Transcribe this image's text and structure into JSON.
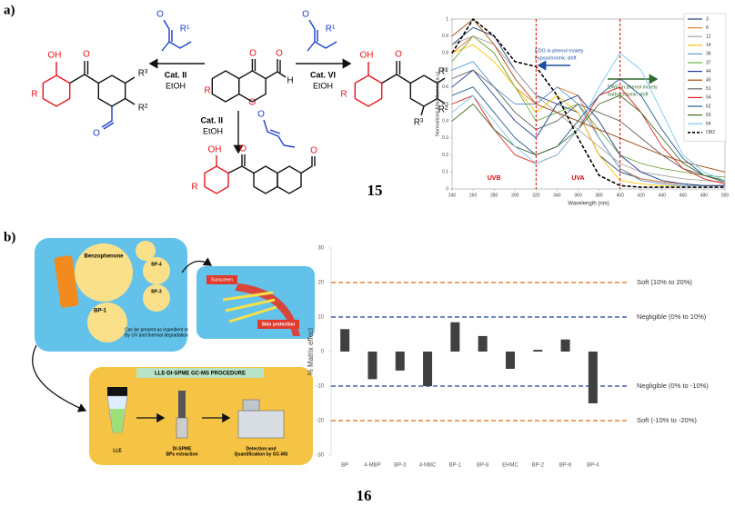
{
  "panel_a": {
    "label": "a)",
    "caption": "15",
    "conditions": [
      {
        "catalyst": "Cat. II",
        "solvent": "EtOH"
      },
      {
        "catalyst": "Cat. VI",
        "solvent": "EtOH"
      },
      {
        "catalyst": "Cat. II",
        "solvent": "EtOH"
      }
    ],
    "left_product": [
      "OH",
      "O",
      "R",
      "R³",
      "R²",
      "O"
    ],
    "left_reagent": [
      "O",
      "R¹"
    ],
    "chromone": [
      "O",
      "O",
      "R",
      "H",
      "O"
    ],
    "right_reagent": [
      "O",
      "R¹"
    ],
    "crotonaldehyde": [
      "O"
    ],
    "right_product": [
      "OH",
      "O",
      "R",
      "R¹",
      "R³",
      "R²"
    ],
    "bottom_product": [
      "OH",
      "O",
      "R",
      "O"
    ]
  },
  "chart_data": [
    {
      "type": "line",
      "xlabel": "Wavelength (nm)",
      "ylabel": "Normalized Absorbance (a.u)",
      "x": [
        240,
        260,
        280,
        300,
        320,
        340,
        360,
        380,
        400,
        420,
        440,
        460,
        480,
        500
      ],
      "xlim": [
        240,
        500
      ],
      "xticks": [
        240,
        260,
        280,
        300,
        320,
        340,
        360,
        380,
        400,
        420,
        440,
        460,
        480,
        500
      ],
      "ylim": [
        0,
        1
      ],
      "yticks": [
        0,
        0.1,
        0.2,
        0.3,
        0.4,
        0.5,
        0.6,
        0.7,
        0.8,
        0.9,
        1
      ],
      "series": [
        {
          "name": "3",
          "color": "#264478",
          "style": "solid",
          "values": [
            0.85,
            0.95,
            0.9,
            0.7,
            0.55,
            0.5,
            0.45,
            0.2,
            0.1,
            0.06,
            0.04,
            0.03,
            0.02,
            0.02
          ]
        },
        {
          "name": "8",
          "color": "#ed7d31",
          "style": "solid",
          "values": [
            0.8,
            0.9,
            0.8,
            0.6,
            0.5,
            0.6,
            0.55,
            0.3,
            0.12,
            0.06,
            0.04,
            0.03,
            0.02,
            0.02
          ]
        },
        {
          "name": "12",
          "color": "#a5a5a5",
          "style": "solid",
          "values": [
            0.85,
            0.9,
            0.85,
            0.7,
            0.55,
            0.45,
            0.35,
            0.25,
            0.15,
            0.1,
            0.08,
            0.06,
            0.05,
            0.04
          ]
        },
        {
          "name": "14",
          "color": "#ffc000",
          "style": "solid",
          "values": [
            0.8,
            0.85,
            0.75,
            0.6,
            0.45,
            0.55,
            0.45,
            0.2,
            0.05,
            0.03,
            0.02,
            0.02,
            0.02,
            0.02
          ]
        },
        {
          "name": "36",
          "color": "#5b9bd5",
          "style": "solid",
          "values": [
            0.7,
            0.75,
            0.6,
            0.5,
            0.5,
            0.6,
            0.5,
            0.3,
            0.12,
            0.05,
            0.03,
            0.02,
            0.02,
            0.02
          ]
        },
        {
          "name": "37",
          "color": "#70ad47",
          "style": "solid",
          "values": [
            0.75,
            0.9,
            0.8,
            0.6,
            0.4,
            0.45,
            0.5,
            0.35,
            0.2,
            0.15,
            0.12,
            0.1,
            0.08,
            0.07
          ]
        },
        {
          "name": "44",
          "color": "#1f3a93",
          "style": "solid",
          "values": [
            0.6,
            0.7,
            0.55,
            0.4,
            0.3,
            0.5,
            0.55,
            0.4,
            0.2,
            0.1,
            0.05,
            0.03,
            0.02,
            0.02
          ]
        },
        {
          "name": "45",
          "color": "#9e480e",
          "style": "solid",
          "values": [
            0.9,
            1.0,
            0.85,
            0.65,
            0.5,
            0.45,
            0.4,
            0.35,
            0.3,
            0.25,
            0.2,
            0.16,
            0.13,
            0.1
          ]
        },
        {
          "name": "51",
          "color": "#636363",
          "style": "solid",
          "values": [
            0.65,
            0.7,
            0.6,
            0.45,
            0.35,
            0.4,
            0.5,
            0.45,
            0.4,
            0.3,
            0.2,
            0.12,
            0.08,
            0.05
          ]
        },
        {
          "name": "54",
          "color": "#e0201b",
          "style": "solid",
          "values": [
            0.5,
            0.55,
            0.35,
            0.2,
            0.15,
            0.2,
            0.35,
            0.55,
            0.6,
            0.45,
            0.25,
            0.12,
            0.06,
            0.03
          ]
        },
        {
          "name": "62",
          "color": "#255e91",
          "style": "solid",
          "values": [
            0.55,
            0.6,
            0.45,
            0.3,
            0.2,
            0.25,
            0.4,
            0.55,
            0.65,
            0.55,
            0.35,
            0.18,
            0.08,
            0.04
          ]
        },
        {
          "name": "63",
          "color": "#43682b",
          "style": "solid",
          "values": [
            0.4,
            0.5,
            0.35,
            0.25,
            0.2,
            0.25,
            0.35,
            0.5,
            0.55,
            0.45,
            0.3,
            0.15,
            0.08,
            0.04
          ]
        },
        {
          "name": "64",
          "color": "#7cc8ea",
          "style": "solid",
          "values": [
            0.45,
            0.55,
            0.4,
            0.25,
            0.15,
            0.2,
            0.35,
            0.6,
            0.8,
            0.7,
            0.45,
            0.2,
            0.1,
            0.05
          ]
        },
        {
          "name": "OB2",
          "color": "#000000",
          "style": "dashed",
          "values": [
            0.8,
            1.0,
            0.9,
            0.75,
            0.72,
            0.55,
            0.3,
            0.08,
            0.02,
            0.01,
            0.01,
            0.01,
            0.01,
            0.01
          ]
        }
      ],
      "markers": [
        {
          "x": 320,
          "label": "UVB",
          "color": "#e00000"
        },
        {
          "x": 400,
          "label": "UVA",
          "color": "#e00000"
        }
      ],
      "annotations": [
        {
          "lines": [
            "EDG in phenol moiety",
            "hypsochromic shift"
          ],
          "color": "#1f4e9c"
        },
        {
          "lines": [
            "EWG in phenol moiety",
            "bathochromic shift"
          ],
          "color": "#2e6b2e"
        }
      ]
    },
    {
      "type": "bar",
      "ylabel": "% Matrix effect",
      "categories": [
        "BP",
        "4-MBP",
        "BP-3",
        "4-MBC",
        "BP-1",
        "BP-8",
        "EHMC",
        "BP-2",
        "BP-6",
        "BP-4"
      ],
      "values": [
        6.5,
        -8,
        -5.5,
        -10,
        8.5,
        4.5,
        -5,
        0.5,
        3.5,
        -15
      ],
      "color": "#404040",
      "ylim": [
        -30,
        30
      ],
      "yticks": [
        -30,
        -20,
        -10,
        0,
        10,
        20,
        30
      ],
      "reference_lines": [
        {
          "value": 20,
          "label": "Soft (10% to 20%)",
          "color": "#e46c0a"
        },
        {
          "value": 10,
          "label": "Negligible (0% to 10%)",
          "color": "#1f3d99"
        },
        {
          "value": -10,
          "label": "Negligible (0% to -10%)",
          "color": "#1f3d99"
        },
        {
          "value": -20,
          "label": "Soft (-10% to -20%)",
          "color": "#e46c0a"
        }
      ]
    }
  ],
  "panel_b": {
    "label": "b)",
    "caption": "16",
    "sources": {
      "compounds": [
        "Benzophenone",
        "BP-4",
        "BP-3",
        "BP-1"
      ],
      "note": [
        "Can be present as ingredient or",
        "By UV and thermal degradation"
      ]
    },
    "use": {
      "product": "Sunscreen",
      "effect": "Skin protection"
    },
    "procedure": {
      "title": "LLE-DI-SPME GC-MS PROCEDURE",
      "steps": [
        [
          "LLE"
        ],
        [
          "DI-SPME",
          "BPs extraction"
        ],
        [
          "Detection and",
          "Quantification by GC-MS"
        ]
      ]
    }
  }
}
